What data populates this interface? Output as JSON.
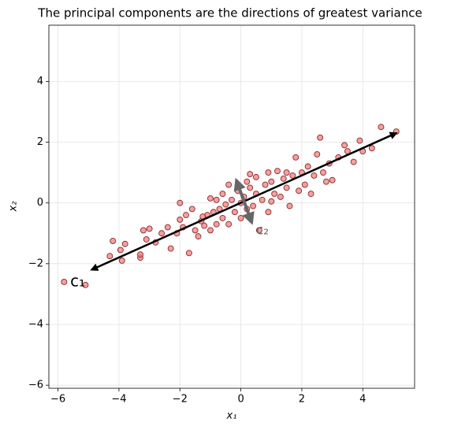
{
  "chart_data": {
    "type": "scatter",
    "title": "The principal components are the directions of greatest variance",
    "x_label": "x₁",
    "y_label": "x₂",
    "xlim": [
      -6.3,
      5.7
    ],
    "ylim": [
      -6.1,
      5.85
    ],
    "xticks": [
      {
        "value": -6,
        "label": "−6"
      },
      {
        "value": -4,
        "label": "−4"
      },
      {
        "value": -2,
        "label": "−2"
      },
      0,
      2,
      4
    ],
    "yticks": [
      {
        "value": -6,
        "label": "−6"
      },
      {
        "value": -4,
        "label": "−4"
      },
      {
        "value": -2,
        "label": "−2"
      },
      0,
      2,
      4
    ],
    "grid": true,
    "color": "#f08080",
    "x": [
      -5.8,
      -5.1,
      -4.2,
      -4.3,
      -3.9,
      -3.95,
      -3.8,
      -3.3,
      -3.3,
      -3.2,
      -3.0,
      -3.1,
      -2.8,
      -2.4,
      -2.3,
      -2.1,
      -2.0,
      -2.0,
      -1.8,
      -1.7,
      -1.6,
      -1.5,
      -1.4,
      -1.3,
      -1.2,
      -1.1,
      -1.0,
      -1.0,
      -0.9,
      -0.8,
      -0.7,
      -0.6,
      -0.6,
      -0.5,
      -0.4,
      -0.4,
      -0.3,
      -0.2,
      -0.1,
      0.0,
      0.0,
      0.1,
      0.2,
      0.3,
      0.3,
      0.4,
      0.5,
      0.5,
      0.6,
      0.7,
      0.8,
      0.9,
      1.0,
      1.1,
      1.2,
      1.3,
      1.4,
      1.5,
      1.6,
      1.7,
      1.8,
      1.9,
      2.0,
      2.1,
      2.2,
      2.3,
      2.4,
      2.5,
      2.6,
      2.7,
      2.8,
      2.9,
      3.0,
      3.2,
      3.4,
      3.5,
      3.7,
      3.9,
      4.0,
      4.3,
      4.6,
      5.1,
      -2.6,
      -1.9,
      -0.8,
      0.2,
      1.0,
      1.5,
      -1.25,
      0.9
    ],
    "values": [
      -2.6,
      -2.7,
      -1.25,
      -1.75,
      -1.9,
      -1.55,
      -1.35,
      -1.8,
      -1.7,
      -0.9,
      -0.85,
      -1.2,
      -1.3,
      -0.8,
      -1.5,
      -1.0,
      0.0,
      -0.55,
      -0.4,
      -1.65,
      -0.2,
      -0.9,
      -1.1,
      -0.6,
      -0.75,
      -0.4,
      0.15,
      -0.9,
      -0.3,
      -0.7,
      -0.2,
      0.3,
      -0.5,
      -0.05,
      0.6,
      -0.7,
      0.1,
      -0.3,
      0.4,
      -0.5,
      0.0,
      0.2,
      -0.2,
      0.95,
      0.5,
      -0.1,
      0.85,
      0.3,
      -0.9,
      0.1,
      0.6,
      -0.3,
      0.7,
      0.3,
      1.05,
      0.2,
      0.8,
      0.5,
      -0.1,
      0.9,
      1.5,
      0.4,
      1.0,
      0.6,
      1.2,
      0.3,
      0.9,
      1.6,
      2.15,
      1.0,
      0.7,
      1.3,
      0.75,
      1.5,
      1.9,
      1.7,
      1.35,
      2.05,
      1.7,
      1.8,
      2.5,
      2.35,
      -1.0,
      -0.8,
      0.1,
      0.7,
      0.05,
      1.0,
      -0.45,
      1.0
    ],
    "arrows": [
      {
        "label": "c₁",
        "color": "#000000",
        "from": [
          -4.9,
          -2.2
        ],
        "to": [
          5.1,
          2.3
        ],
        "label_at": [
          -5.6,
          -2.6
        ]
      },
      {
        "label": "c₂",
        "color": "#666666",
        "from": [
          -0.15,
          0.75
        ],
        "to": [
          0.36,
          -0.65
        ],
        "label_at": [
          0.5,
          -0.9
        ]
      }
    ]
  }
}
